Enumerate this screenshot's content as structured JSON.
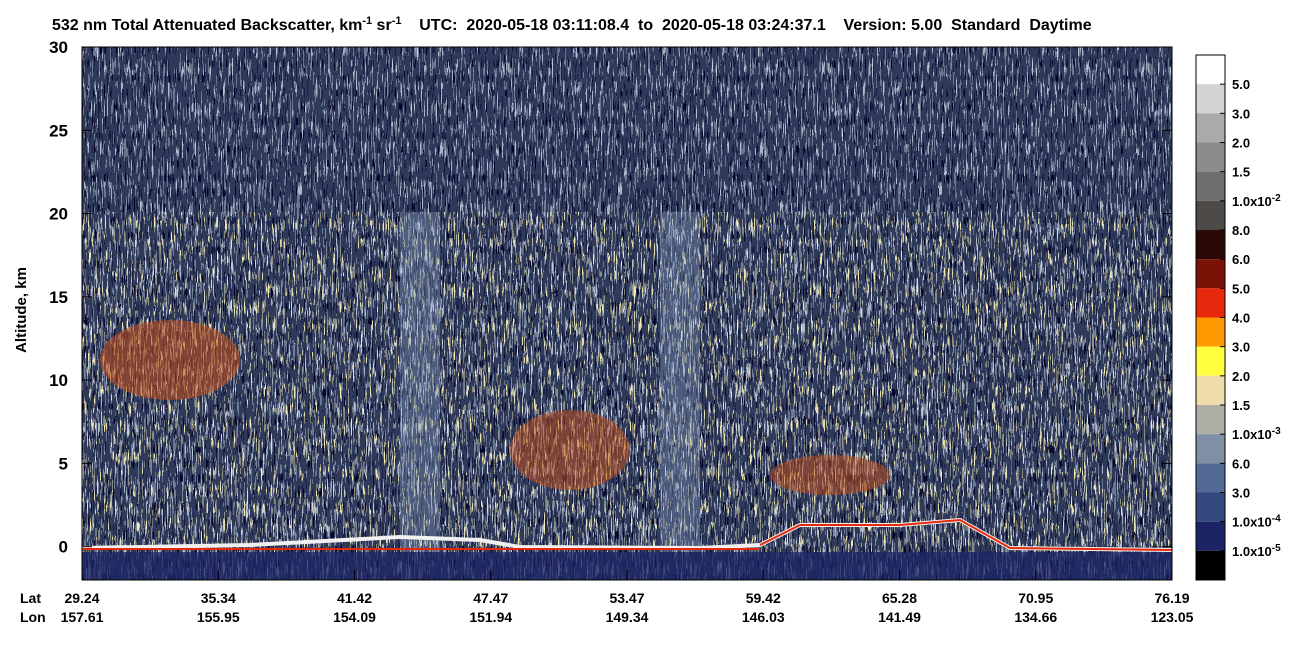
{
  "chart_data": {
    "type": "profile",
    "title": {
      "text": "532 nm Total Attenuated Backscatter, km",
      "sup": "-1",
      "unit2": " sr",
      "sup2": "-1"
    },
    "utc": "UTC:  2020-05-18 03:11:08.4  to  2020-05-18 03:24:37.1",
    "version": "Version: 5.00  Standard  Daytime",
    "ylabel": "Altitude, km",
    "ylim": [
      -2,
      30
    ],
    "yticks": [
      0,
      5,
      10,
      15,
      20,
      25,
      30
    ],
    "lat_label": "Lat",
    "lon_label": "Lon",
    "lat": [
      29.24,
      35.34,
      41.42,
      47.47,
      53.47,
      59.42,
      65.28,
      70.95,
      76.19
    ],
    "lon": [
      157.61,
      155.95,
      154.09,
      151.94,
      149.34,
      146.03,
      141.49,
      134.66,
      123.05
    ],
    "colorbar": {
      "colors": [
        "#ffffff",
        "#d4d4d4",
        "#aaaaaa",
        "#8c8c8c",
        "#6e6e6e",
        "#4e4a48",
        "#2b0a05",
        "#7a1208",
        "#e8280c",
        "#ff9a00",
        "#ffff40",
        "#efdcaa",
        "#aeb0a6",
        "#7f90a6",
        "#526a94",
        "#33487e",
        "#1c2466",
        "#000000"
      ],
      "labels": [
        "5.0",
        "3.0",
        "2.0",
        "1.5",
        {
          "text": "1.0x10",
          "sup": "-2"
        },
        "8.0",
        "6.0",
        "5.0",
        "4.0",
        "3.0",
        "2.0",
        "1.5",
        {
          "text": "1.0x10",
          "sup": "-3"
        },
        "6.0",
        "3.0",
        {
          "text": "1.0x10",
          "sup": "-4"
        },
        {
          "text": "1.0x10",
          "sup": "-5"
        }
      ]
    }
  }
}
